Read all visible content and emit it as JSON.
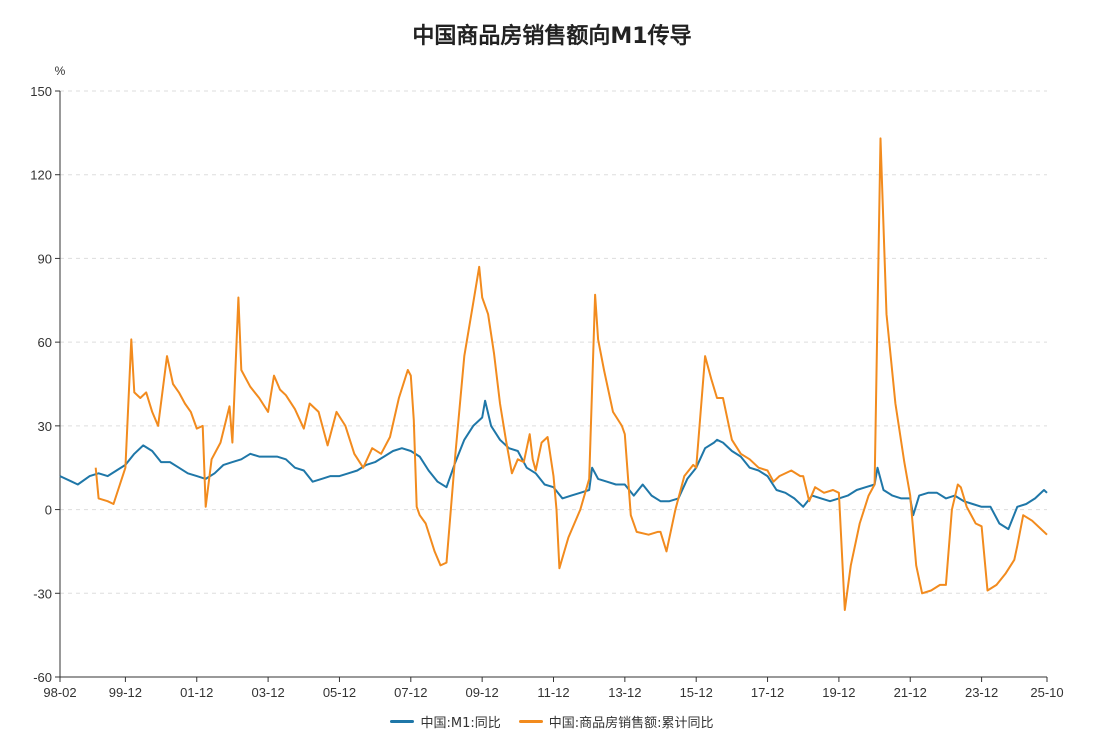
{
  "chart_data": {
    "type": "line",
    "title": "中国商品房销售额向M1传导",
    "y_unit": "%",
    "ylim": [
      -60,
      150
    ],
    "y_ticks": [
      "150",
      "120",
      "90",
      "60",
      "30",
      "0",
      "-30",
      "-60"
    ],
    "x_ticks": [
      "98-02",
      "99-12",
      "01-12",
      "03-12",
      "05-12",
      "07-12",
      "09-12",
      "11-12",
      "13-12",
      "15-12",
      "17-12",
      "19-12",
      "21-12",
      "23-12",
      "25-10"
    ],
    "x_start": "1998-02",
    "x_end": "2025-10",
    "grid": true,
    "legend_position": "bottom",
    "series": [
      {
        "name": "中国:M1:同比",
        "color": "#1f77a8",
        "points": [
          [
            "1998-02",
            12
          ],
          [
            "1998-06",
            10
          ],
          [
            "1998-08",
            9
          ],
          [
            "1998-12",
            12
          ],
          [
            "1999-03",
            13
          ],
          [
            "1999-06",
            12
          ],
          [
            "1999-09",
            14
          ],
          [
            "1999-12",
            16
          ],
          [
            "2000-03",
            20
          ],
          [
            "2000-06",
            23
          ],
          [
            "2000-09",
            21
          ],
          [
            "2000-12",
            17
          ],
          [
            "2001-03",
            17
          ],
          [
            "2001-06",
            15
          ],
          [
            "2001-09",
            13
          ],
          [
            "2001-12",
            12
          ],
          [
            "2002-03",
            11
          ],
          [
            "2002-06",
            13
          ],
          [
            "2002-09",
            16
          ],
          [
            "2002-12",
            17
          ],
          [
            "2003-03",
            18
          ],
          [
            "2003-06",
            20
          ],
          [
            "2003-09",
            19
          ],
          [
            "2003-12",
            19
          ],
          [
            "2004-03",
            19
          ],
          [
            "2004-06",
            18
          ],
          [
            "2004-09",
            15
          ],
          [
            "2004-12",
            14
          ],
          [
            "2005-03",
            10
          ],
          [
            "2005-06",
            11
          ],
          [
            "2005-09",
            12
          ],
          [
            "2005-12",
            12
          ],
          [
            "2006-03",
            13
          ],
          [
            "2006-06",
            14
          ],
          [
            "2006-09",
            16
          ],
          [
            "2006-12",
            17
          ],
          [
            "2007-03",
            19
          ],
          [
            "2007-06",
            21
          ],
          [
            "2007-09",
            22
          ],
          [
            "2007-12",
            21
          ],
          [
            "2008-03",
            19
          ],
          [
            "2008-06",
            14
          ],
          [
            "2008-09",
            10
          ],
          [
            "2008-12",
            8
          ],
          [
            "2009-03",
            17
          ],
          [
            "2009-06",
            25
          ],
          [
            "2009-09",
            30
          ],
          [
            "2009-12",
            33
          ],
          [
            "2010-01",
            39
          ],
          [
            "2010-03",
            30
          ],
          [
            "2010-06",
            25
          ],
          [
            "2010-09",
            22
          ],
          [
            "2010-12",
            21
          ],
          [
            "2011-03",
            15
          ],
          [
            "2011-06",
            13
          ],
          [
            "2011-09",
            9
          ],
          [
            "2011-12",
            8
          ],
          [
            "2012-03",
            4
          ],
          [
            "2012-06",
            5
          ],
          [
            "2012-09",
            6
          ],
          [
            "2012-12",
            7
          ],
          [
            "2013-01",
            15
          ],
          [
            "2013-03",
            11
          ],
          [
            "2013-06",
            10
          ],
          [
            "2013-09",
            9
          ],
          [
            "2013-12",
            9
          ],
          [
            "2014-03",
            5
          ],
          [
            "2014-06",
            9
          ],
          [
            "2014-09",
            5
          ],
          [
            "2014-12",
            3
          ],
          [
            "2015-03",
            3
          ],
          [
            "2015-06",
            4
          ],
          [
            "2015-09",
            11
          ],
          [
            "2015-12",
            15
          ],
          [
            "2016-03",
            22
          ],
          [
            "2016-06",
            24
          ],
          [
            "2016-07",
            25
          ],
          [
            "2016-09",
            24
          ],
          [
            "2016-12",
            21
          ],
          [
            "2017-03",
            19
          ],
          [
            "2017-06",
            15
          ],
          [
            "2017-09",
            14
          ],
          [
            "2017-12",
            12
          ],
          [
            "2018-03",
            7
          ],
          [
            "2018-06",
            6
          ],
          [
            "2018-09",
            4
          ],
          [
            "2018-12",
            1
          ],
          [
            "2019-03",
            5
          ],
          [
            "2019-06",
            4
          ],
          [
            "2019-09",
            3
          ],
          [
            "2019-12",
            4
          ],
          [
            "2020-03",
            5
          ],
          [
            "2020-06",
            7
          ],
          [
            "2020-09",
            8
          ],
          [
            "2020-12",
            9
          ],
          [
            "2021-01",
            15
          ],
          [
            "2021-03",
            7
          ],
          [
            "2021-06",
            5
          ],
          [
            "2021-09",
            4
          ],
          [
            "2021-12",
            4
          ],
          [
            "2022-01",
            -2
          ],
          [
            "2022-03",
            5
          ],
          [
            "2022-06",
            6
          ],
          [
            "2022-09",
            6
          ],
          [
            "2022-12",
            4
          ],
          [
            "2023-03",
            5
          ],
          [
            "2023-06",
            3
          ],
          [
            "2023-09",
            2
          ],
          [
            "2023-12",
            1
          ],
          [
            "2024-03",
            1
          ],
          [
            "2024-06",
            -5
          ],
          [
            "2024-09",
            -7
          ],
          [
            "2024-12",
            1
          ],
          [
            "2025-03",
            2
          ],
          [
            "2025-06",
            4
          ],
          [
            "2025-09",
            7
          ],
          [
            "2025-10",
            6
          ]
        ]
      },
      {
        "name": "中国:商品房销售额:累计同比",
        "color": "#f28b1e",
        "points": [
          [
            "1999-02",
            15
          ],
          [
            "1999-03",
            4
          ],
          [
            "1999-06",
            3
          ],
          [
            "1999-08",
            2
          ],
          [
            "1999-12",
            15
          ],
          [
            "2000-02",
            61
          ],
          [
            "2000-03",
            42
          ],
          [
            "2000-05",
            40
          ],
          [
            "2000-07",
            42
          ],
          [
            "2000-09",
            35
          ],
          [
            "2000-11",
            30
          ],
          [
            "2001-02",
            55
          ],
          [
            "2001-04",
            45
          ],
          [
            "2001-06",
            42
          ],
          [
            "2001-08",
            38
          ],
          [
            "2001-10",
            35
          ],
          [
            "2001-12",
            29
          ],
          [
            "2002-02",
            30
          ],
          [
            "2002-03",
            1
          ],
          [
            "2002-05",
            18
          ],
          [
            "2002-08",
            24
          ],
          [
            "2002-11",
            37
          ],
          [
            "2002-12",
            24
          ],
          [
            "2003-02",
            76
          ],
          [
            "2003-03",
            50
          ],
          [
            "2003-06",
            44
          ],
          [
            "2003-09",
            40
          ],
          [
            "2003-12",
            35
          ],
          [
            "2004-02",
            48
          ],
          [
            "2004-04",
            43
          ],
          [
            "2004-06",
            41
          ],
          [
            "2004-09",
            36
          ],
          [
            "2004-12",
            29
          ],
          [
            "2005-02",
            38
          ],
          [
            "2005-05",
            35
          ],
          [
            "2005-08",
            23
          ],
          [
            "2005-11",
            35
          ],
          [
            "2006-02",
            30
          ],
          [
            "2006-05",
            20
          ],
          [
            "2006-08",
            15
          ],
          [
            "2006-11",
            22
          ],
          [
            "2007-02",
            20
          ],
          [
            "2007-05",
            26
          ],
          [
            "2007-08",
            40
          ],
          [
            "2007-11",
            50
          ],
          [
            "2007-12",
            48
          ],
          [
            "2008-01",
            32
          ],
          [
            "2008-02",
            1
          ],
          [
            "2008-03",
            -2
          ],
          [
            "2008-05",
            -5
          ],
          [
            "2008-08",
            -15
          ],
          [
            "2008-10",
            -20
          ],
          [
            "2008-12",
            -19
          ],
          [
            "2009-03",
            20
          ],
          [
            "2009-06",
            55
          ],
          [
            "2009-09",
            74
          ],
          [
            "2009-11",
            87
          ],
          [
            "2009-12",
            76
          ],
          [
            "2010-02",
            70
          ],
          [
            "2010-04",
            56
          ],
          [
            "2010-06",
            38
          ],
          [
            "2010-08",
            25
          ],
          [
            "2010-10",
            13
          ],
          [
            "2010-12",
            18
          ],
          [
            "2011-02",
            17
          ],
          [
            "2011-04",
            27
          ],
          [
            "2011-05",
            18
          ],
          [
            "2011-06",
            14
          ],
          [
            "2011-08",
            24
          ],
          [
            "2011-10",
            26
          ],
          [
            "2011-12",
            12
          ],
          [
            "2012-01",
            0
          ],
          [
            "2012-02",
            -21
          ],
          [
            "2012-05",
            -10
          ],
          [
            "2012-09",
            0
          ],
          [
            "2012-12",
            11
          ],
          [
            "2013-02",
            77
          ],
          [
            "2013-03",
            61
          ],
          [
            "2013-05",
            50
          ],
          [
            "2013-08",
            35
          ],
          [
            "2013-11",
            30
          ],
          [
            "2013-12",
            27
          ],
          [
            "2014-02",
            -2
          ],
          [
            "2014-04",
            -8
          ],
          [
            "2014-08",
            -9
          ],
          [
            "2014-11",
            -8
          ],
          [
            "2014-12",
            -8
          ],
          [
            "2015-02",
            -15
          ],
          [
            "2015-05",
            0
          ],
          [
            "2015-08",
            12
          ],
          [
            "2015-11",
            16
          ],
          [
            "2015-12",
            15
          ],
          [
            "2016-03",
            55
          ],
          [
            "2016-05",
            47
          ],
          [
            "2016-07",
            40
          ],
          [
            "2016-09",
            40
          ],
          [
            "2016-11",
            30
          ],
          [
            "2016-12",
            25
          ],
          [
            "2017-03",
            20
          ],
          [
            "2017-06",
            18
          ],
          [
            "2017-09",
            15
          ],
          [
            "2017-12",
            14
          ],
          [
            "2018-02",
            10
          ],
          [
            "2018-04",
            12
          ],
          [
            "2018-08",
            14
          ],
          [
            "2018-11",
            12
          ],
          [
            "2018-12",
            12
          ],
          [
            "2019-02",
            3
          ],
          [
            "2019-04",
            8
          ],
          [
            "2019-07",
            6
          ],
          [
            "2019-10",
            7
          ],
          [
            "2019-12",
            6
          ],
          [
            "2020-02",
            -36
          ],
          [
            "2020-04",
            -20
          ],
          [
            "2020-07",
            -5
          ],
          [
            "2020-10",
            5
          ],
          [
            "2020-12",
            9
          ],
          [
            "2021-02",
            133
          ],
          [
            "2021-04",
            70
          ],
          [
            "2021-07",
            38
          ],
          [
            "2021-10",
            17
          ],
          [
            "2021-12",
            5
          ],
          [
            "2022-02",
            -20
          ],
          [
            "2022-04",
            -30
          ],
          [
            "2022-07",
            -29
          ],
          [
            "2022-10",
            -27
          ],
          [
            "2022-12",
            -27
          ],
          [
            "2023-02",
            0
          ],
          [
            "2023-04",
            9
          ],
          [
            "2023-05",
            8
          ],
          [
            "2023-07",
            1
          ],
          [
            "2023-10",
            -5
          ],
          [
            "2023-12",
            -6
          ],
          [
            "2024-02",
            -29
          ],
          [
            "2024-05",
            -27
          ],
          [
            "2024-08",
            -23
          ],
          [
            "2024-11",
            -18
          ],
          [
            "2024-12",
            -13
          ],
          [
            "2025-02",
            -2
          ],
          [
            "2025-05",
            -4
          ],
          [
            "2025-08",
            -7
          ],
          [
            "2025-10",
            -9
          ]
        ]
      }
    ]
  }
}
